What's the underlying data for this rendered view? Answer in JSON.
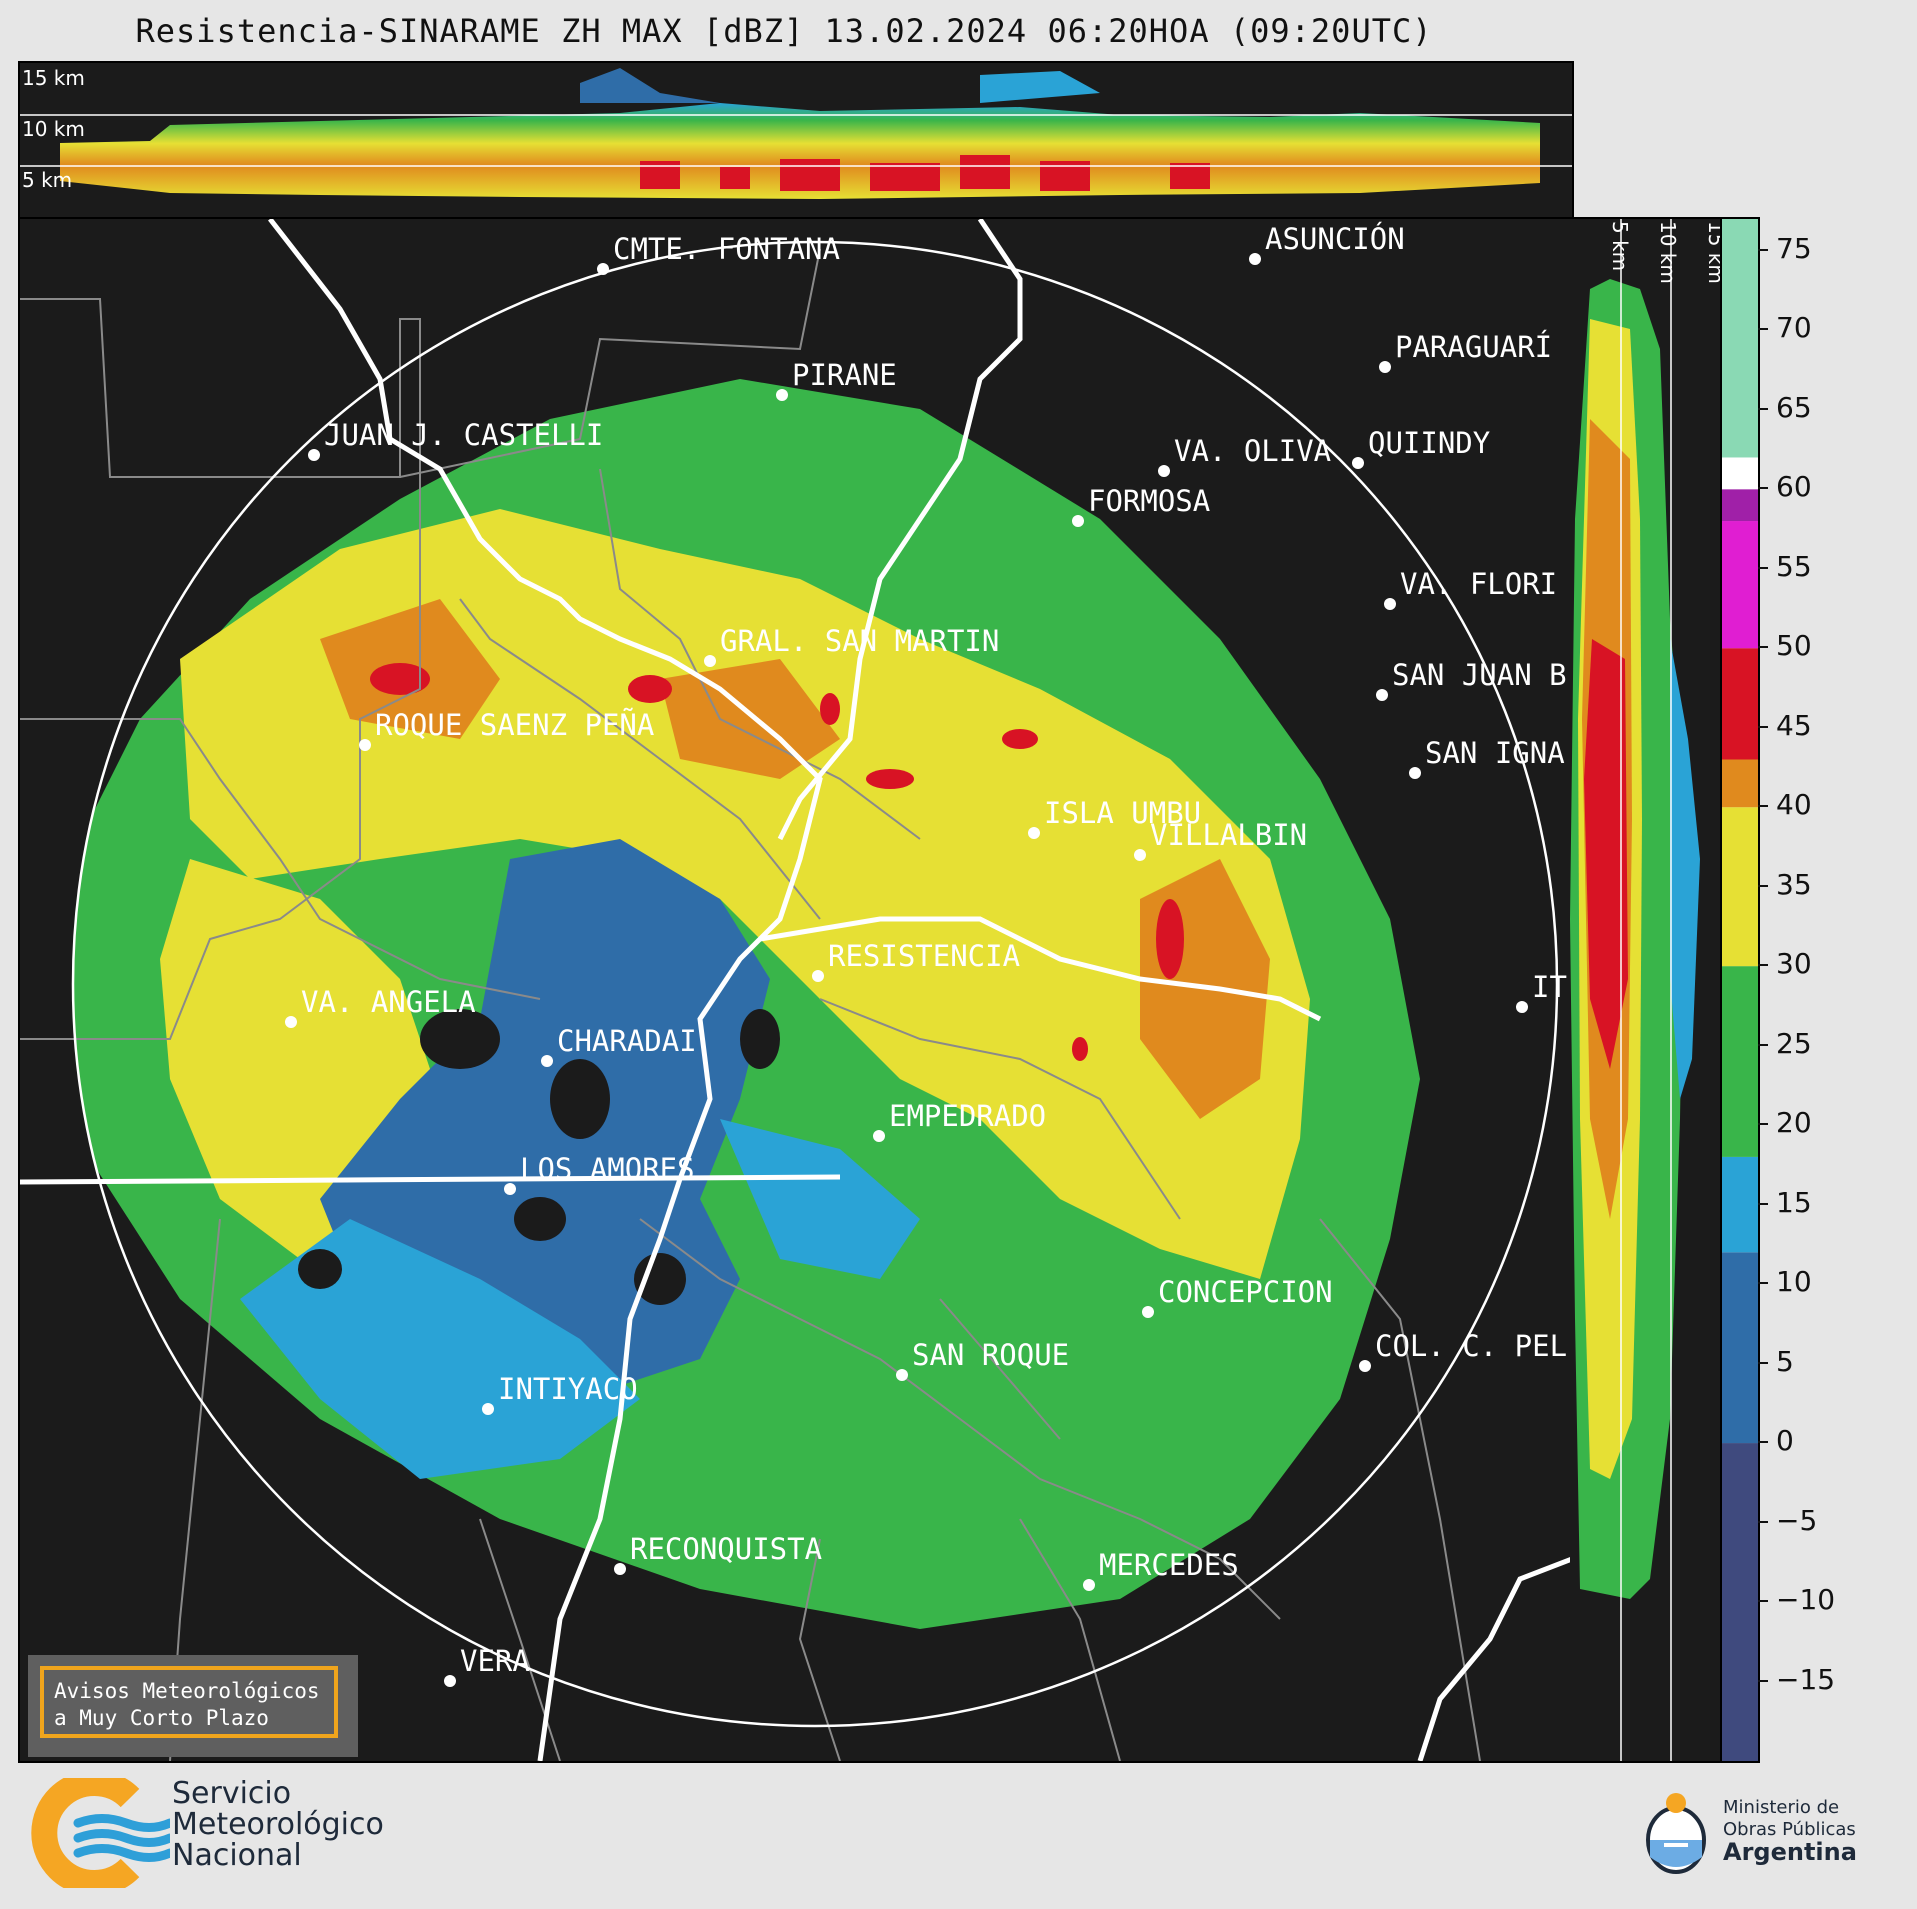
{
  "title": "Resistencia-SINARAME ZH MAX [dBZ] 13.02.2024 06:20HOA (09:20UTC)",
  "top_panel": {
    "km_labels": [
      "15 km",
      "10 km",
      "5 km"
    ]
  },
  "side_panel": {
    "km_labels": [
      "5 km",
      "10 km",
      "15 km"
    ]
  },
  "colorbar": {
    "unit": "dBZ",
    "ticks": [
      "75",
      "70",
      "65",
      "60",
      "55",
      "50",
      "45",
      "40",
      "35",
      "30",
      "25",
      "20",
      "15",
      "10",
      "5",
      "0",
      "−5",
      "−10",
      "−15"
    ],
    "tick_values": [
      75,
      70,
      65,
      60,
      55,
      50,
      45,
      40,
      35,
      30,
      25,
      20,
      15,
      10,
      5,
      0,
      -5,
      -10,
      -15
    ],
    "range": [
      -20,
      77
    ],
    "bands": [
      {
        "from": -20,
        "to": 0,
        "color": "#3f4a7e"
      },
      {
        "from": 0,
        "to": 12,
        "color": "#2f6da8"
      },
      {
        "from": 12,
        "to": 18,
        "color": "#2aa3d6"
      },
      {
        "from": 18,
        "to": 30,
        "color": "#39b54a"
      },
      {
        "from": 30,
        "to": 40,
        "color": "#e6e034"
      },
      {
        "from": 40,
        "to": 43,
        "color": "#e08a1e"
      },
      {
        "from": 43,
        "to": 50,
        "color": "#d81324"
      },
      {
        "from": 50,
        "to": 58,
        "color": "#e01ed2"
      },
      {
        "from": 58,
        "to": 60,
        "color": "#a020a8"
      },
      {
        "from": 60,
        "to": 62,
        "color": "#ffffff"
      },
      {
        "from": 62,
        "to": 77,
        "color": "#8ad9b4"
      }
    ]
  },
  "cities": [
    {
      "name": "CMTE. FONTANA"
    },
    {
      "name": "ASUNCIÓN"
    },
    {
      "name": "PARAGUARÍ"
    },
    {
      "name": "PIRANE"
    },
    {
      "name": "JUAN J. CASTELLI"
    },
    {
      "name": "VA. OLIVA"
    },
    {
      "name": "QUIINDY"
    },
    {
      "name": "FORMOSA"
    },
    {
      "name": "VA. FLORI"
    },
    {
      "name": "GRAL. SAN MARTIN"
    },
    {
      "name": "SAN JUAN B"
    },
    {
      "name": "ROQUE SAENZ PEÑA"
    },
    {
      "name": "SAN IGNA"
    },
    {
      "name": "ISLA UMBU"
    },
    {
      "name": "VILLALBIN"
    },
    {
      "name": "RESISTENCIA"
    },
    {
      "name": "IT"
    },
    {
      "name": "VA. ANGELA"
    },
    {
      "name": "CHARADAI"
    },
    {
      "name": "EMPEDRADO"
    },
    {
      "name": "LOS AMORES"
    },
    {
      "name": "CONCEPCION"
    },
    {
      "name": "COL. C. PEL"
    },
    {
      "name": "SAN ROQUE"
    },
    {
      "name": "INTIYACO"
    },
    {
      "name": "RECONQUISTA"
    },
    {
      "name": "MERCEDES"
    },
    {
      "name": "VERA"
    }
  ],
  "avisos": {
    "line1": "Avisos Meteorológicos",
    "line2": "a Muy Corto Plazo"
  },
  "footer": {
    "smn_line1": "Servicio",
    "smn_line2": "Meteorológico",
    "smn_line3": "Nacional",
    "gov_line1": "Ministerio de",
    "gov_line2": "Obras Públicas",
    "gov_line3": "Argentina"
  }
}
